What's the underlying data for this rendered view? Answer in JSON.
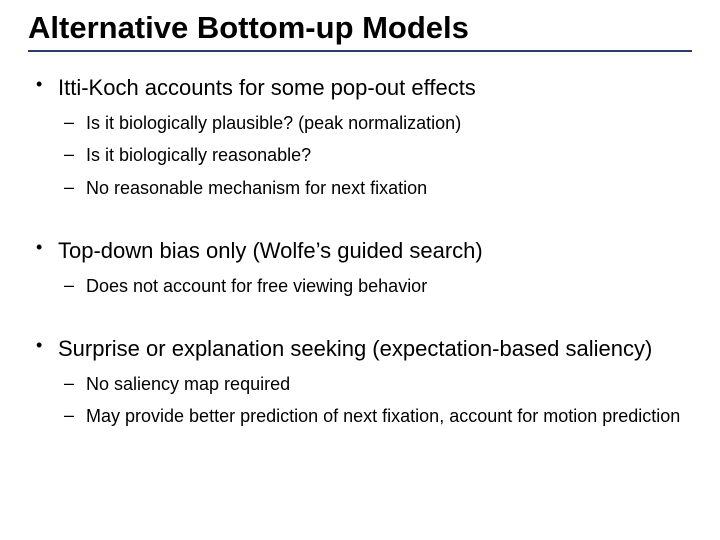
{
  "title": "Alternative Bottom-up Models",
  "rule_color": "#2a3e6a",
  "title_fontsize": 31,
  "lvl1_fontsize": 22,
  "lvl2_fontsize": 18,
  "bullets": [
    {
      "text": "Itti-Koch accounts for some pop-out effects",
      "sub": [
        "Is it biologically plausible? (peak normalization)",
        "Is it biologically reasonable?",
        "No reasonable mechanism for next fixation"
      ]
    },
    {
      "text": "Top-down bias only (Wolfe’s guided search)",
      "sub": [
        "Does not account for free viewing behavior"
      ]
    },
    {
      "text": "Surprise or explanation seeking (expectation-based saliency)",
      "sub": [
        "No saliency map required",
        "May provide better prediction of next fixation, account for motion prediction"
      ]
    }
  ]
}
